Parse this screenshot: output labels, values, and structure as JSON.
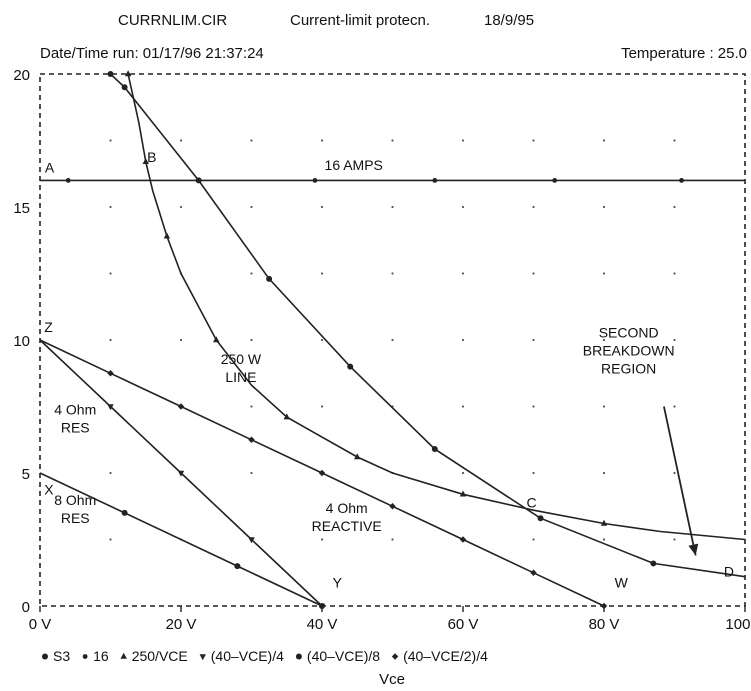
{
  "header": {
    "filename": "CURRNLIM.CIR",
    "circuit": "Current-limit protecn.",
    "date": "18/9/95",
    "run": "Date/Time run: 01/17/96  21:37:24",
    "temperature": "Temperature : 25.0"
  },
  "chart_data": {
    "type": "line",
    "xlabel": "Vce",
    "ylabel": "",
    "xlim": [
      0,
      100
    ],
    "ylim": [
      0,
      20
    ],
    "x_ticks": [
      {
        "value": 0,
        "label": "0 V"
      },
      {
        "value": 20,
        "label": "20 V"
      },
      {
        "value": 40,
        "label": "40 V"
      },
      {
        "value": 60,
        "label": "60 V"
      },
      {
        "value": 80,
        "label": "80 V"
      },
      {
        "value": 100,
        "label": "100 V"
      }
    ],
    "y_ticks": [
      {
        "value": 0,
        "label": "0"
      },
      {
        "value": 5,
        "label": "5"
      },
      {
        "value": 10,
        "label": "10"
      },
      {
        "value": 15,
        "label": "15"
      },
      {
        "value": 20,
        "label": "20"
      }
    ],
    "grid": "dotted",
    "legend_position": "bottom",
    "series": [
      {
        "name": "S3",
        "marker": "circle",
        "x": [
          10,
          12,
          22.5,
          32.5,
          44,
          56,
          71,
          87,
          100
        ],
        "y": [
          20,
          19.5,
          16,
          12.3,
          9,
          5.9,
          3.3,
          1.6,
          1.1
        ]
      },
      {
        "name": "16",
        "marker": "dot",
        "x": [
          0,
          4,
          22.5,
          39,
          56,
          73,
          91,
          100
        ],
        "y": [
          16,
          16,
          16,
          16,
          16,
          16,
          16,
          16
        ]
      },
      {
        "name": "250/VCE",
        "marker": "triangle-up",
        "x": [
          12.5,
          14,
          15,
          16,
          18,
          20,
          25,
          30,
          35,
          39,
          45,
          50,
          60,
          70,
          80,
          88,
          100
        ],
        "y": [
          20,
          18.2,
          16.7,
          15.6,
          13.9,
          12.5,
          10,
          8.3,
          7.1,
          6.5,
          5.6,
          5,
          4.2,
          3.6,
          3.1,
          2.8,
          2.5
        ]
      },
      {
        "name": "(40–VCE)/4",
        "marker": "triangle-down",
        "x": [
          0,
          10,
          20,
          30,
          40
        ],
        "y": [
          10,
          7.5,
          5,
          2.5,
          0
        ]
      },
      {
        "name": "(40–VCE)/8",
        "marker": "circle",
        "x": [
          0,
          12,
          28,
          40
        ],
        "y": [
          5,
          3.5,
          1.5,
          0
        ]
      },
      {
        "name": "(40–VCE/2)/4",
        "marker": "diamond",
        "x": [
          0,
          10,
          20,
          30,
          40,
          50,
          60,
          70,
          80
        ],
        "y": [
          10,
          8.75,
          7.5,
          6.25,
          5,
          3.75,
          2.5,
          1.25,
          0
        ]
      }
    ],
    "point_labels": [
      {
        "text": "A",
        "x": 0.7,
        "y": 16.3
      },
      {
        "text": "B",
        "x": 15.2,
        "y": 16.7
      },
      {
        "text": "C",
        "x": 69,
        "y": 3.7
      },
      {
        "text": "D",
        "x": 97,
        "y": 1.1
      },
      {
        "text": "Z",
        "x": 0.6,
        "y": 10.3
      },
      {
        "text": "X",
        "x": 0.6,
        "y": 4.2
      },
      {
        "text": "Y",
        "x": 41.5,
        "y": 0.7
      },
      {
        "text": "W",
        "x": 81.5,
        "y": 0.7
      }
    ],
    "annotations": [
      {
        "lines": [
          "16 AMPS"
        ],
        "x": 44.5,
        "y": 16.4
      },
      {
        "lines": [
          "250 W",
          "LINE"
        ],
        "x": 28.5,
        "y": 9.1
      },
      {
        "lines": [
          "4 Ohm",
          "RES"
        ],
        "x": 5,
        "y": 7.2
      },
      {
        "lines": [
          "8 Ohm",
          "RES"
        ],
        "x": 5,
        "y": 3.8
      },
      {
        "lines": [
          "4 Ohm",
          "REACTIVE"
        ],
        "x": 43.5,
        "y": 3.5
      },
      {
        "lines": [
          "SECOND",
          "BREAKDOWN",
          "REGION"
        ],
        "x": 83.5,
        "y": 10.1
      }
    ],
    "arrows": [
      {
        "from": [
          88.5,
          7.5
        ],
        "to": [
          93,
          1.9
        ]
      }
    ]
  }
}
